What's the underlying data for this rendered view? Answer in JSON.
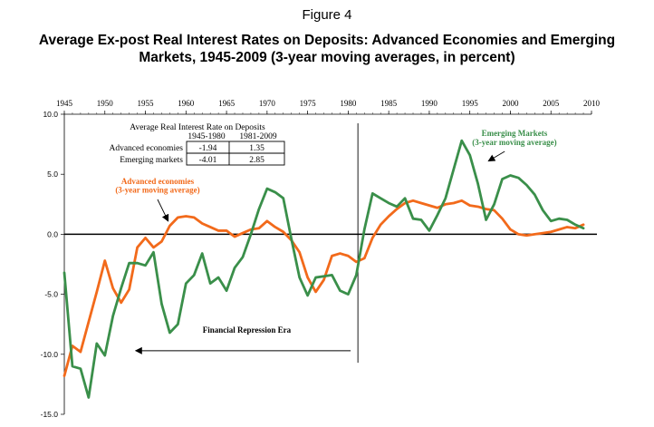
{
  "figure_label": "Figure 4",
  "title_line1": "Average Ex-post Real Interest Rates on Deposits: Advanced Economies and Emerging",
  "title_line2": "Markets, 1945-2009 (3-year moving averages, in percent)",
  "chart_data": {
    "type": "line",
    "xlim": [
      1945,
      2010
    ],
    "ylim": [
      -15,
      10
    ],
    "x_ticks": [
      1945,
      1950,
      1955,
      1960,
      1965,
      1970,
      1975,
      1980,
      1985,
      1990,
      1995,
      2000,
      2005,
      2010
    ],
    "y_ticks": [
      {
        "value": 10,
        "label": "10.0"
      },
      {
        "value": 5,
        "label": "5.0"
      },
      {
        "value": 0,
        "label": "0.0"
      },
      {
        "value": -5,
        "label": "-5.0"
      },
      {
        "value": -10,
        "label": "-10.0"
      },
      {
        "value": -15,
        "label": "-15.0"
      }
    ],
    "x_axis_position": "top",
    "zero_line": true,
    "vertical_marker_year": 1981.2,
    "series": [
      {
        "key": "advanced",
        "color": "#f26a1b",
        "label_line1": "Advanced economies",
        "label_line2": "(3-year moving average)",
        "x": [
          1945,
          1946,
          1947,
          1948,
          1949,
          1950,
          1951,
          1952,
          1953,
          1954,
          1955,
          1956,
          1957,
          1958,
          1959,
          1960,
          1961,
          1962,
          1963,
          1964,
          1965,
          1966,
          1967,
          1968,
          1969,
          1970,
          1971,
          1972,
          1973,
          1974,
          1975,
          1976,
          1977,
          1978,
          1979,
          1980,
          1981,
          1982,
          1983,
          1984,
          1985,
          1986,
          1987,
          1988,
          1989,
          1990,
          1991,
          1992,
          1993,
          1994,
          1995,
          1996,
          1997,
          1998,
          1999,
          2000,
          2001,
          2002,
          2003,
          2004,
          2005,
          2006,
          2007,
          2008,
          2009
        ],
        "y": [
          -11.8,
          -9.3,
          -9.8,
          -7.3,
          -4.8,
          -2.2,
          -4.5,
          -5.7,
          -4.6,
          -1.1,
          -0.3,
          -1.1,
          -0.6,
          0.7,
          1.4,
          1.5,
          1.4,
          0.9,
          0.6,
          0.3,
          0.3,
          -0.2,
          0.1,
          0.4,
          0.5,
          1.1,
          0.6,
          0.2,
          -0.5,
          -1.5,
          -3.6,
          -4.8,
          -3.8,
          -1.8,
          -1.6,
          -1.8,
          -2.3,
          -2.0,
          -0.3,
          0.8,
          1.5,
          2.1,
          2.6,
          2.8,
          2.6,
          2.4,
          2.2,
          2.5,
          2.6,
          2.8,
          2.4,
          2.3,
          2.1,
          2.0,
          1.3,
          0.4,
          0.0,
          -0.1,
          0.0,
          0.1,
          0.2,
          0.4,
          0.6,
          0.5,
          0.8
        ]
      },
      {
        "key": "emerging",
        "color": "#3a8f4a",
        "label_line1": "Emerging Markets",
        "label_line2": "(3-year moving average)",
        "x": [
          1945,
          1946,
          1947,
          1948,
          1949,
          1950,
          1951,
          1952,
          1953,
          1954,
          1955,
          1956,
          1957,
          1958,
          1959,
          1960,
          1961,
          1962,
          1963,
          1964,
          1965,
          1966,
          1967,
          1968,
          1969,
          1970,
          1971,
          1972,
          1973,
          1974,
          1975,
          1976,
          1977,
          1978,
          1979,
          1980,
          1981,
          1982,
          1983,
          1984,
          1985,
          1986,
          1987,
          1988,
          1989,
          1990,
          1991,
          1992,
          1993,
          1994,
          1995,
          1996,
          1997,
          1998,
          1999,
          2000,
          2001,
          2002,
          2003,
          2004,
          2005,
          2006,
          2007,
          2008,
          2009
        ],
        "y": [
          -3.2,
          -11.0,
          -11.2,
          -13.6,
          -9.1,
          -10.1,
          -6.8,
          -4.5,
          -2.4,
          -2.4,
          -2.6,
          -1.5,
          -5.8,
          -8.2,
          -7.5,
          -4.1,
          -3.4,
          -1.6,
          -4.1,
          -3.6,
          -4.7,
          -2.8,
          -1.9,
          0.0,
          2.1,
          3.8,
          3.5,
          3.0,
          -0.4,
          -3.6,
          -5.1,
          -3.6,
          -3.5,
          -3.4,
          -4.7,
          -5.0,
          -3.4,
          0.4,
          3.4,
          3.0,
          2.6,
          2.3,
          3.0,
          1.3,
          1.2,
          0.3,
          1.6,
          3.0,
          5.4,
          7.8,
          6.6,
          4.2,
          1.2,
          2.5,
          4.6,
          4.9,
          4.7,
          4.1,
          3.3,
          2.0,
          1.1,
          1.3,
          1.2,
          0.8,
          0.5
        ]
      }
    ],
    "annotations": {
      "repression_label": "Financial Repression Era"
    },
    "inset_table": {
      "title": "Average Real Interest Rate on Deposits",
      "col_headers": [
        "1945-1980",
        "1981-2009"
      ],
      "rows": [
        {
          "label": "Advanced economies",
          "values": [
            "-1.94",
            "1.35"
          ]
        },
        {
          "label": "Emerging markets",
          "values": [
            "-4.01",
            "2.85"
          ]
        }
      ]
    }
  }
}
